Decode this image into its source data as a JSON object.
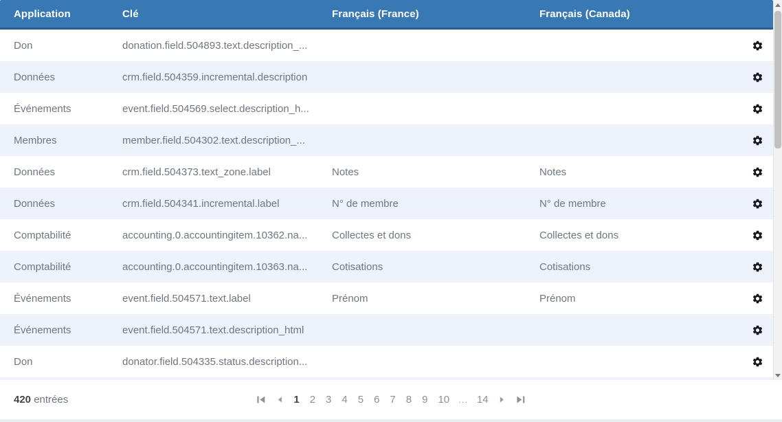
{
  "table": {
    "columns": [
      "Application",
      "Clé",
      "Français (France)",
      "Français (Canada)"
    ],
    "rows": [
      {
        "app": "Don",
        "key": "donation.field.504893.text.description_...",
        "fr_fr": "",
        "fr_ca": ""
      },
      {
        "app": "Données",
        "key": "crm.field.504359.incremental.description",
        "fr_fr": "",
        "fr_ca": ""
      },
      {
        "app": "Événements",
        "key": "event.field.504569.select.description_h...",
        "fr_fr": "",
        "fr_ca": ""
      },
      {
        "app": "Membres",
        "key": "member.field.504302.text.description_...",
        "fr_fr": "",
        "fr_ca": ""
      },
      {
        "app": "Données",
        "key": "crm.field.504373.text_zone.label",
        "fr_fr": "Notes",
        "fr_ca": "Notes"
      },
      {
        "app": "Données",
        "key": "crm.field.504341.incremental.label",
        "fr_fr": "N° de membre",
        "fr_ca": "N° de membre"
      },
      {
        "app": "Comptabilité",
        "key": "accounting.0.accountingitem.10362.na...",
        "fr_fr": "Collectes et dons",
        "fr_ca": "Collectes et dons"
      },
      {
        "app": "Comptabilité",
        "key": "accounting.0.accountingitem.10363.na...",
        "fr_fr": "Cotisations",
        "fr_ca": "Cotisations"
      },
      {
        "app": "Événements",
        "key": "event.field.504571.text.label",
        "fr_fr": "Prénom",
        "fr_ca": "Prénom"
      },
      {
        "app": "Événements",
        "key": "event.field.504571.text.description_html",
        "fr_fr": "",
        "fr_ca": ""
      },
      {
        "app": "Don",
        "key": "donator.field.504335.status.description...",
        "fr_fr": "",
        "fr_ca": ""
      }
    ]
  },
  "footer": {
    "count": "420",
    "count_label": "entrées",
    "pages": [
      "1",
      "2",
      "3",
      "4",
      "5",
      "6",
      "7",
      "8",
      "9",
      "10",
      "...",
      "14"
    ],
    "current_page": "1"
  },
  "icons": {
    "gear": "⚙",
    "first_page": "|◀",
    "prev_page": "◀",
    "next_page": "▶",
    "last_page": "▶|",
    "scroll_up": "▲",
    "scroll_down": "▼"
  },
  "colors": {
    "header_bg": "#3878b4",
    "header_border": "#2b5d92",
    "row_alt_bg": "#eef2fa",
    "row_text": "#6e7780",
    "gear": "#16181d",
    "pagination_grey": "#8b9197",
    "current_page_text": "#41464c",
    "scrollbar_thumb": "#c1c1c1",
    "scrollbar_track": "#f1f1f1",
    "page_bg": "#e8edf5"
  }
}
